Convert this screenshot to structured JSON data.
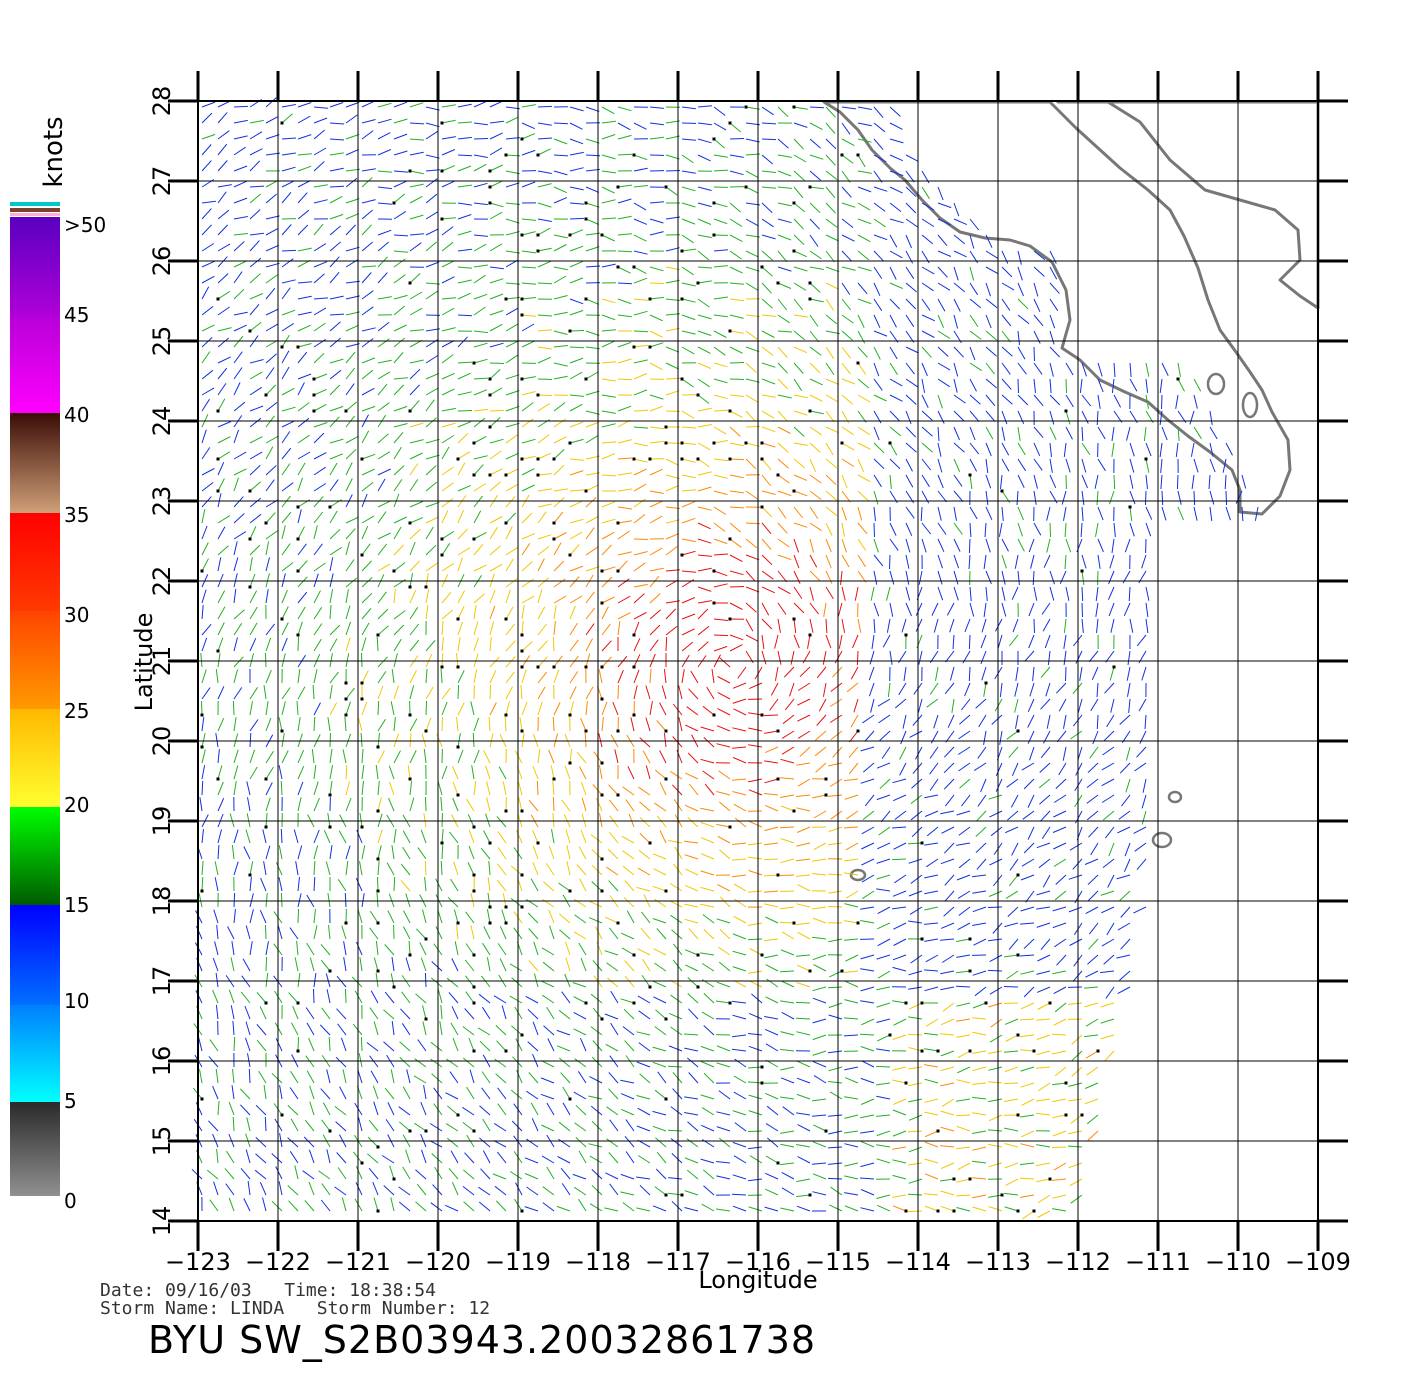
{
  "legend": {
    "unit": "knots",
    "max_label": ">50",
    "ticks": [
      "45",
      "40",
      "35",
      "30",
      "25",
      "20",
      "15",
      "10",
      "5",
      "0"
    ],
    "colors": {
      "purple": "#6a00c8",
      "magenta": "#ff00ff",
      "brown_dark": "#3b1008",
      "brown_light": "#c8906a",
      "red": "#ff0000",
      "orange": "#ff8c00",
      "yellow": "#ffff20",
      "green": "#00ff00",
      "green_dark": "#006400",
      "blue": "#0000ff",
      "cyan": "#00ffff",
      "gray_dark": "#333333",
      "gray_light": "#888888"
    }
  },
  "axes": {
    "xlabel": "Longitude",
    "ylabel": "Latitude",
    "x_ticks": [
      "−123",
      "−122",
      "−121",
      "−120",
      "−119",
      "−118",
      "−117",
      "−116",
      "−115",
      "−114",
      "−113",
      "−112",
      "−111",
      "−110",
      "−109"
    ],
    "y_ticks": [
      "14",
      "15",
      "16",
      "17",
      "18",
      "19",
      "20",
      "21",
      "22",
      "23",
      "24",
      "25",
      "26",
      "27",
      "28"
    ],
    "lon_range": [
      -123,
      -109
    ],
    "lat_range": [
      14,
      28
    ],
    "grid": true
  },
  "storm_center": {
    "lon": -116.3,
    "lat": 21.0
  },
  "footer": {
    "date_line": "Date: 09/16/03   Time: 18:38:54",
    "storm_line": "Storm Name: LINDA   Storm Number: 12",
    "product": "BYU SW_S2B03943.20032861738"
  }
}
